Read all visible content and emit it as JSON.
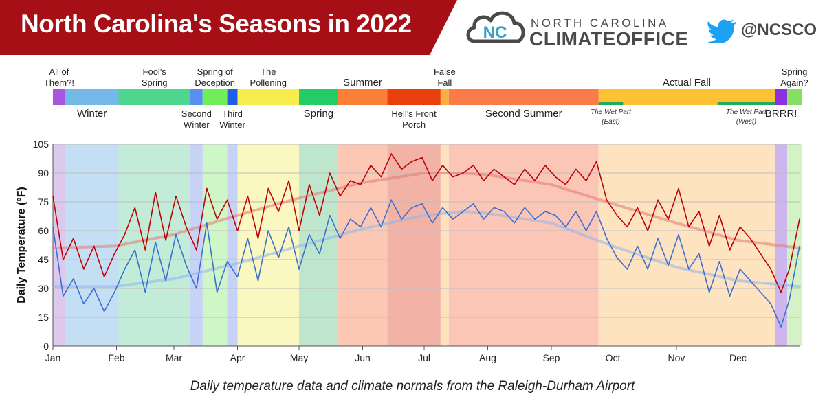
{
  "header": {
    "title": "North Carolina's Seasons in 2022",
    "banner_color": "#a50f15",
    "org_line1": "NORTH CAROLINA",
    "org_line2": "CLIMATEOFFICE",
    "org_logo_letters": "NC",
    "logo_icon": "cloud-icon",
    "twitter_icon": "twitter-bird-icon",
    "twitter_handle": "@NCSCO"
  },
  "caption": "Daily temperature data and climate normals from the Raleigh-Durham Airport",
  "seasons": [
    {
      "label": "All of Them?!",
      "lines": [
        "All of",
        "Them?!"
      ],
      "above": true,
      "start": "2022-01-01",
      "end": "2022-01-06",
      "color": "#a855e0",
      "bg": "#ddc8ee"
    },
    {
      "label": "Winter",
      "lines": [
        "Winter"
      ],
      "above": false,
      "start": "2022-01-07",
      "end": "2022-02-01",
      "color": "#74b9e8",
      "bg": "#c4dff4"
    },
    {
      "label": "Fool's Spring",
      "lines": [
        "Fool's",
        "Spring"
      ],
      "above": true,
      "start": "2022-02-02",
      "end": "2022-03-08",
      "color": "#4fd68e",
      "bg": "#c2ecd8"
    },
    {
      "label": "Second Winter",
      "lines": [
        "Second",
        "Winter"
      ],
      "above": false,
      "start": "2022-03-09",
      "end": "2022-03-14",
      "color": "#5a8ef0",
      "bg": "#c6d2f6"
    },
    {
      "label": "Spring of Deception",
      "lines": [
        "Spring of",
        "Deception"
      ],
      "above": true,
      "start": "2022-03-15",
      "end": "2022-03-26",
      "color": "#6fee5a",
      "bg": "#cef6c6"
    },
    {
      "label": "Third Winter",
      "lines": [
        "Third",
        "Winter"
      ],
      "above": false,
      "start": "2022-03-27",
      "end": "2022-03-31",
      "color": "#1f5fe6",
      "bg": "#c6d2f6"
    },
    {
      "label": "The Pollening",
      "lines": [
        "The",
        "Pollening"
      ],
      "above": true,
      "start": "2022-04-01",
      "end": "2022-04-30",
      "color": "#f7ee4e",
      "bg": "#fbf7c0"
    },
    {
      "label": "Spring",
      "lines": [
        "Spring"
      ],
      "above": false,
      "start": "2022-05-01",
      "end": "2022-05-19",
      "color": "#25cc66",
      "bg": "#bde6cc"
    },
    {
      "label": "Summer",
      "lines": [
        "Summer"
      ],
      "above": true,
      "start": "2022-05-20",
      "end": "2022-06-12",
      "color": "#fb7f36",
      "bg": "#fcc8b4"
    },
    {
      "label": "Hell's Front Porch",
      "lines": [
        "Hell's Front",
        "Porch"
      ],
      "above": false,
      "start": "2022-06-13",
      "end": "2022-07-08",
      "color": "#e93f0c",
      "bg": "#f2b3a6"
    },
    {
      "label": "False Fall",
      "lines": [
        "False",
        "Fall"
      ],
      "above": true,
      "start": "2022-07-09",
      "end": "2022-07-12",
      "color": "#fbb040",
      "bg": "#fde2bc"
    },
    {
      "label": "Second Summer",
      "lines": [
        "Second Summer"
      ],
      "above": false,
      "start": "2022-07-13",
      "end": "2022-09-23",
      "color": "#fa7b48",
      "bg": "#fcc6b6"
    },
    {
      "label": "Actual Fall",
      "lines": [
        "Actual Fall"
      ],
      "above": true,
      "start": "2022-09-24",
      "end": "2022-12-18",
      "color": "#fcc232",
      "bg": "#fde3c0"
    },
    {
      "label": "BRRR!",
      "lines": [
        "BRRR!"
      ],
      "above": false,
      "start": "2022-12-19",
      "end": "2022-12-24",
      "color": "#8f2ee0",
      "bg": "#cdb6ee"
    },
    {
      "label": "Spring Again?",
      "lines": [
        "Spring",
        "Again?"
      ],
      "above": true,
      "start": "2022-12-25",
      "end": "2022-12-31",
      "color": "#84e060",
      "bg": "#d4f2c6"
    }
  ],
  "sub_periods": [
    {
      "lines": [
        "The Wet Part",
        "(East)"
      ],
      "start": "2022-09-24",
      "end": "2022-10-05",
      "color": "#22aa5f"
    },
    {
      "lines": [
        "The Wet Part",
        "(West)"
      ],
      "start": "2022-11-21",
      "end": "2022-12-18",
      "color": "#22aa5f"
    }
  ],
  "chart_data": {
    "type": "line",
    "title": "",
    "xlabel": "",
    "ylabel": "Daily Temperature (°F)",
    "x_range": [
      "2022-01-01",
      "2022-12-31"
    ],
    "ylim": [
      0,
      105
    ],
    "yticks": [
      0,
      15,
      30,
      45,
      60,
      75,
      90,
      105
    ],
    "xtick_labels": [
      "Jan",
      "Feb",
      "Mar",
      "Apr",
      "May",
      "Jun",
      "Jul",
      "Aug",
      "Sep",
      "Oct",
      "Nov",
      "Dec"
    ],
    "grid": true,
    "series": [
      {
        "name": "",
        "kind": "daily-high",
        "color": "#c00000",
        "x": [
          "2022-01-01",
          "2022-01-06",
          "2022-01-11",
          "2022-01-16",
          "2022-01-21",
          "2022-01-26",
          "2022-01-31",
          "2022-02-05",
          "2022-02-10",
          "2022-02-15",
          "2022-02-20",
          "2022-02-25",
          "2022-03-02",
          "2022-03-07",
          "2022-03-12",
          "2022-03-17",
          "2022-03-22",
          "2022-03-27",
          "2022-04-01",
          "2022-04-06",
          "2022-04-11",
          "2022-04-16",
          "2022-04-21",
          "2022-04-26",
          "2022-05-01",
          "2022-05-06",
          "2022-05-11",
          "2022-05-16",
          "2022-05-21",
          "2022-05-26",
          "2022-05-31",
          "2022-06-05",
          "2022-06-10",
          "2022-06-15",
          "2022-06-20",
          "2022-06-25",
          "2022-06-30",
          "2022-07-05",
          "2022-07-10",
          "2022-07-15",
          "2022-07-20",
          "2022-07-25",
          "2022-07-30",
          "2022-08-04",
          "2022-08-09",
          "2022-08-14",
          "2022-08-19",
          "2022-08-24",
          "2022-08-29",
          "2022-09-03",
          "2022-09-08",
          "2022-09-13",
          "2022-09-18",
          "2022-09-23",
          "2022-09-28",
          "2022-10-03",
          "2022-10-08",
          "2022-10-13",
          "2022-10-18",
          "2022-10-23",
          "2022-10-28",
          "2022-11-02",
          "2022-11-07",
          "2022-11-12",
          "2022-11-17",
          "2022-11-22",
          "2022-11-27",
          "2022-12-02",
          "2022-12-07",
          "2022-12-12",
          "2022-12-17",
          "2022-12-22",
          "2022-12-26",
          "2022-12-31"
        ],
        "values": [
          78,
          45,
          56,
          40,
          52,
          36,
          48,
          58,
          72,
          50,
          80,
          55,
          78,
          62,
          50,
          82,
          66,
          76,
          60,
          78,
          56,
          82,
          70,
          86,
          60,
          84,
          68,
          90,
          78,
          86,
          84,
          94,
          88,
          100,
          92,
          96,
          98,
          86,
          94,
          88,
          90,
          94,
          86,
          92,
          88,
          84,
          92,
          86,
          94,
          88,
          84,
          92,
          86,
          96,
          76,
          68,
          62,
          72,
          60,
          76,
          66,
          82,
          62,
          70,
          52,
          68,
          50,
          62,
          56,
          48,
          40,
          28,
          40,
          66
        ]
      },
      {
        "name": "",
        "kind": "daily-low",
        "color": "#3a6ecf",
        "x": [
          "2022-01-01",
          "2022-01-06",
          "2022-01-11",
          "2022-01-16",
          "2022-01-21",
          "2022-01-26",
          "2022-01-31",
          "2022-02-05",
          "2022-02-10",
          "2022-02-15",
          "2022-02-20",
          "2022-02-25",
          "2022-03-02",
          "2022-03-07",
          "2022-03-12",
          "2022-03-17",
          "2022-03-22",
          "2022-03-27",
          "2022-04-01",
          "2022-04-06",
          "2022-04-11",
          "2022-04-16",
          "2022-04-21",
          "2022-04-26",
          "2022-05-01",
          "2022-05-06",
          "2022-05-11",
          "2022-05-16",
          "2022-05-21",
          "2022-05-26",
          "2022-05-31",
          "2022-06-05",
          "2022-06-10",
          "2022-06-15",
          "2022-06-20",
          "2022-06-25",
          "2022-06-30",
          "2022-07-05",
          "2022-07-10",
          "2022-07-15",
          "2022-07-20",
          "2022-07-25",
          "2022-07-30",
          "2022-08-04",
          "2022-08-09",
          "2022-08-14",
          "2022-08-19",
          "2022-08-24",
          "2022-08-29",
          "2022-09-03",
          "2022-09-08",
          "2022-09-13",
          "2022-09-18",
          "2022-09-23",
          "2022-09-28",
          "2022-10-03",
          "2022-10-08",
          "2022-10-13",
          "2022-10-18",
          "2022-10-23",
          "2022-10-28",
          "2022-11-02",
          "2022-11-07",
          "2022-11-12",
          "2022-11-17",
          "2022-11-22",
          "2022-11-27",
          "2022-12-02",
          "2022-12-07",
          "2022-12-12",
          "2022-12-17",
          "2022-12-22",
          "2022-12-26",
          "2022-12-31"
        ],
        "values": [
          62,
          26,
          35,
          22,
          30,
          18,
          28,
          40,
          50,
          28,
          54,
          34,
          58,
          42,
          30,
          64,
          28,
          44,
          36,
          56,
          34,
          60,
          46,
          62,
          40,
          58,
          48,
          68,
          56,
          66,
          62,
          72,
          62,
          76,
          66,
          72,
          74,
          64,
          72,
          66,
          70,
          74,
          66,
          72,
          70,
          64,
          72,
          66,
          70,
          68,
          62,
          70,
          60,
          70,
          56,
          46,
          40,
          52,
          40,
          56,
          42,
          58,
          40,
          48,
          28,
          44,
          26,
          40,
          34,
          28,
          22,
          10,
          24,
          52
        ]
      },
      {
        "name": "",
        "kind": "normal-high",
        "color": "#e07a7a",
        "x": [
          "2022-01-01",
          "2022-01-31",
          "2022-03-01",
          "2022-04-01",
          "2022-05-01",
          "2022-06-01",
          "2022-07-01",
          "2022-07-20",
          "2022-08-01",
          "2022-09-01",
          "2022-10-01",
          "2022-11-01",
          "2022-12-01",
          "2022-12-31"
        ],
        "values": [
          51,
          52,
          58,
          68,
          77,
          85,
          90,
          90,
          89,
          84,
          74,
          64,
          55,
          51
        ]
      },
      {
        "name": "",
        "kind": "normal-low",
        "color": "#8fb4ec",
        "x": [
          "2022-01-01",
          "2022-01-31",
          "2022-03-01",
          "2022-04-01",
          "2022-05-01",
          "2022-06-01",
          "2022-07-01",
          "2022-07-20",
          "2022-08-01",
          "2022-09-01",
          "2022-10-01",
          "2022-11-01",
          "2022-12-01",
          "2022-12-31"
        ],
        "values": [
          31,
          31,
          35,
          43,
          52,
          61,
          68,
          70,
          69,
          64,
          52,
          41,
          34,
          31
        ]
      }
    ]
  }
}
